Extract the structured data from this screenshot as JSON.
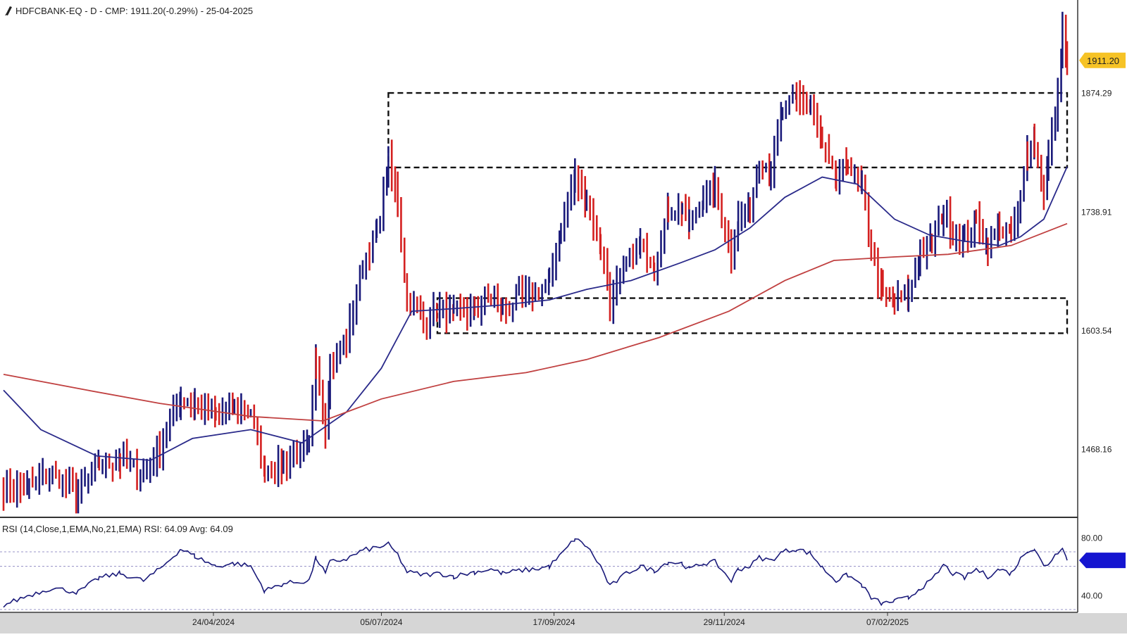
{
  "header": {
    "title": "HDFCBANK-EQ - D - CMP: 1911.20(-0.29%) - 25-04-2025",
    "icon": "pen-icon"
  },
  "price_pane": {
    "current_price_label": "1911.20",
    "y_tick_labels": [
      "1874.29",
      "1738.91",
      "1603.54",
      "1468.16"
    ],
    "colors": {
      "up": "#1a1a7a",
      "down": "#d42020",
      "ma_fast": "#2a2a8a",
      "ma_slow": "#c04040",
      "price_tag": "#f5b800"
    }
  },
  "rsi_pane": {
    "label": "RSI (14,Close,1,EMA,No,21,EMA) RSI: 64.09 Avg: 64.09",
    "y_tick_labels": [
      "80.00",
      "40.00"
    ],
    "current_tag_color": "#1515d0"
  },
  "x_axis": {
    "tick_labels": [
      "24/04/2024",
      "05/07/2024",
      "17/09/2024",
      "29/11/2024",
      "07/02/2025"
    ]
  },
  "chart_data": [
    {
      "type": "candlestick",
      "title": "HDFCBANK-EQ - D - CMP: 1911.20(-0.29%) - 25-04-2025",
      "x_start": "2024-01-25",
      "x_end": "2025-04-25",
      "ylim": [
        1390,
        1980
      ],
      "y_ticks": [
        1874.29,
        1738.91,
        1603.54,
        1468.16
      ],
      "current_price": 1911.2,
      "close_path": [
        [
          "2024-01-25",
          1420
        ],
        [
          "2024-02-05",
          1425
        ],
        [
          "2024-02-15",
          1440
        ],
        [
          "2024-02-26",
          1418
        ],
        [
          "2024-03-06",
          1450
        ],
        [
          "2024-03-15",
          1455
        ],
        [
          "2024-03-25",
          1440
        ],
        [
          "2024-04-01",
          1470
        ],
        [
          "2024-04-10",
          1525
        ],
        [
          "2024-04-16",
          1520
        ],
        [
          "2024-04-25",
          1505
        ],
        [
          "2024-05-03",
          1515
        ],
        [
          "2024-05-10",
          1510
        ],
        [
          "2024-05-16",
          1445
        ],
        [
          "2024-05-24",
          1450
        ],
        [
          "2024-06-04",
          1470
        ],
        [
          "2024-06-07",
          1570
        ],
        [
          "2024-06-11",
          1490
        ],
        [
          "2024-06-13",
          1560
        ],
        [
          "2024-06-20",
          1590
        ],
        [
          "2024-06-27",
          1680
        ],
        [
          "2024-07-03",
          1715
        ],
        [
          "2024-07-08",
          1795
        ],
        [
          "2024-07-12",
          1750
        ],
        [
          "2024-07-16",
          1640
        ],
        [
          "2024-07-23",
          1615
        ],
        [
          "2024-07-30",
          1625
        ],
        [
          "2024-08-05",
          1620
        ],
        [
          "2024-08-14",
          1630
        ],
        [
          "2024-08-21",
          1640
        ],
        [
          "2024-08-26",
          1625
        ],
        [
          "2024-09-02",
          1640
        ],
        [
          "2024-09-09",
          1645
        ],
        [
          "2024-09-15",
          1660
        ],
        [
          "2024-09-20",
          1720
        ],
        [
          "2024-09-26",
          1780
        ],
        [
          "2024-10-01",
          1750
        ],
        [
          "2024-10-07",
          1700
        ],
        [
          "2024-10-11",
          1635
        ],
        [
          "2024-10-18",
          1680
        ],
        [
          "2024-10-24",
          1700
        ],
        [
          "2024-10-30",
          1680
        ],
        [
          "2024-11-05",
          1740
        ],
        [
          "2024-11-11",
          1745
        ],
        [
          "2024-11-14",
          1720
        ],
        [
          "2024-11-20",
          1755
        ],
        [
          "2024-11-25",
          1765
        ],
        [
          "2024-12-02",
          1690
        ],
        [
          "2024-12-05",
          1730
        ],
        [
          "2024-12-10",
          1745
        ],
        [
          "2024-12-14",
          1800
        ],
        [
          "2024-12-19",
          1785
        ],
        [
          "2024-12-24",
          1850
        ],
        [
          "2024-12-30",
          1870
        ],
        [
          "2025-01-05",
          1860
        ],
        [
          "2025-01-10",
          1810
        ],
        [
          "2025-01-16",
          1775
        ],
        [
          "2025-01-21",
          1795
        ],
        [
          "2025-01-27",
          1760
        ],
        [
          "2025-01-31",
          1700
        ],
        [
          "2025-02-05",
          1640
        ],
        [
          "2025-02-10",
          1635
        ],
        [
          "2025-02-16",
          1645
        ],
        [
          "2025-02-21",
          1690
        ],
        [
          "2025-02-26",
          1705
        ],
        [
          "2025-03-03",
          1740
        ],
        [
          "2025-03-07",
          1715
        ],
        [
          "2025-03-12",
          1705
        ],
        [
          "2025-03-17",
          1730
        ],
        [
          "2025-03-22",
          1700
        ],
        [
          "2025-03-27",
          1725
        ],
        [
          "2025-04-01",
          1710
        ],
        [
          "2025-04-05",
          1750
        ],
        [
          "2025-04-08",
          1810
        ],
        [
          "2025-04-11",
          1820
        ],
        [
          "2025-04-15",
          1760
        ],
        [
          "2025-04-17",
          1800
        ],
        [
          "2025-04-21",
          1870
        ],
        [
          "2025-04-23",
          1945
        ],
        [
          "2025-04-25",
          1911.2
        ]
      ],
      "series": [
        {
          "name": "",
          "line": "moving-average-fast",
          "points": [
            [
              "2024-01-25",
              1535
            ],
            [
              "2024-02-10",
              1490
            ],
            [
              "2024-03-05",
              1460
            ],
            [
              "2024-03-28",
              1455
            ],
            [
              "2024-04-15",
              1480
            ],
            [
              "2024-05-10",
              1490
            ],
            [
              "2024-06-01",
              1475
            ],
            [
              "2024-06-20",
              1510
            ],
            [
              "2024-07-05",
              1560
            ],
            [
              "2024-07-18",
              1625
            ],
            [
              "2024-08-05",
              1628
            ],
            [
              "2024-08-25",
              1632
            ],
            [
              "2024-09-15",
              1638
            ],
            [
              "2024-10-01",
              1650
            ],
            [
              "2024-10-20",
              1660
            ],
            [
              "2024-11-10",
              1680
            ],
            [
              "2024-11-25",
              1695
            ],
            [
              "2024-12-10",
              1720
            ],
            [
              "2024-12-25",
              1755
            ],
            [
              "2025-01-10",
              1778
            ],
            [
              "2025-01-25",
              1770
            ],
            [
              "2025-02-10",
              1730
            ],
            [
              "2025-02-25",
              1712
            ],
            [
              "2025-03-12",
              1705
            ],
            [
              "2025-03-27",
              1700
            ],
            [
              "2025-04-05",
              1710
            ],
            [
              "2025-04-15",
              1730
            ],
            [
              "2025-04-25",
              1790
            ]
          ]
        },
        {
          "name": "",
          "line": "moving-average-slow",
          "points": [
            [
              "2024-01-25",
              1553
            ],
            [
              "2024-03-01",
              1535
            ],
            [
              "2024-04-01",
              1520
            ],
            [
              "2024-05-10",
              1505
            ],
            [
              "2024-06-10",
              1500
            ],
            [
              "2024-07-05",
              1525
            ],
            [
              "2024-08-05",
              1545
            ],
            [
              "2024-09-05",
              1555
            ],
            [
              "2024-10-01",
              1570
            ],
            [
              "2024-11-01",
              1595
            ],
            [
              "2024-12-01",
              1625
            ],
            [
              "2024-12-25",
              1660
            ],
            [
              "2025-01-15",
              1683
            ],
            [
              "2025-02-10",
              1687
            ],
            [
              "2025-03-05",
              1690
            ],
            [
              "2025-04-01",
              1700
            ],
            [
              "2025-04-25",
              1725
            ]
          ]
        }
      ],
      "annotations": [
        {
          "type": "zone",
          "x_from": "2024-07-08",
          "x_to": "2025-04-25",
          "y_from": 1789,
          "y_to": 1874
        },
        {
          "type": "zone",
          "x_from": "2024-07-29",
          "x_to": "2025-04-25",
          "y_from": 1600,
          "y_to": 1640
        }
      ]
    },
    {
      "type": "line",
      "title": "RSI (14,Close,1,EMA,No,21,EMA) RSI: 64.09 Avg: 64.09",
      "ylim": [
        30,
        90
      ],
      "y_ticks": [
        80,
        40
      ],
      "reference_lines": [
        70,
        60,
        30
      ],
      "series": [
        {
          "name": "RSI",
          "points": [
            [
              "2024-01-25",
              33
            ],
            [
              "2024-02-05",
              40
            ],
            [
              "2024-02-15",
              45
            ],
            [
              "2024-02-26",
              42
            ],
            [
              "2024-03-06",
              52
            ],
            [
              "2024-03-15",
              55
            ],
            [
              "2024-03-25",
              50
            ],
            [
              "2024-04-01",
              58
            ],
            [
              "2024-04-10",
              72
            ],
            [
              "2024-04-16",
              67
            ],
            [
              "2024-04-25",
              60
            ],
            [
              "2024-05-03",
              62
            ],
            [
              "2024-05-10",
              60
            ],
            [
              "2024-05-16",
              43
            ],
            [
              "2024-05-24",
              48
            ],
            [
              "2024-06-04",
              50
            ],
            [
              "2024-06-07",
              66
            ],
            [
              "2024-06-11",
              55
            ],
            [
              "2024-06-13",
              63
            ],
            [
              "2024-06-20",
              65
            ],
            [
              "2024-06-27",
              71
            ],
            [
              "2024-07-03",
              73
            ],
            [
              "2024-07-08",
              75
            ],
            [
              "2024-07-12",
              68
            ],
            [
              "2024-07-16",
              56
            ],
            [
              "2024-07-23",
              54
            ],
            [
              "2024-07-30",
              55
            ],
            [
              "2024-08-05",
              53
            ],
            [
              "2024-08-14",
              56
            ],
            [
              "2024-08-21",
              58
            ],
            [
              "2024-08-26",
              55
            ],
            [
              "2024-09-02",
              57
            ],
            [
              "2024-09-09",
              58
            ],
            [
              "2024-09-15",
              60
            ],
            [
              "2024-09-20",
              68
            ],
            [
              "2024-09-26",
              79
            ],
            [
              "2024-10-01",
              74
            ],
            [
              "2024-10-07",
              60
            ],
            [
              "2024-10-11",
              46
            ],
            [
              "2024-10-18",
              55
            ],
            [
              "2024-10-24",
              60
            ],
            [
              "2024-10-30",
              57
            ],
            [
              "2024-11-05",
              63
            ],
            [
              "2024-11-11",
              62
            ],
            [
              "2024-11-14",
              58
            ],
            [
              "2024-11-20",
              62
            ],
            [
              "2024-11-25",
              63
            ],
            [
              "2024-12-02",
              50
            ],
            [
              "2024-12-05",
              58
            ],
            [
              "2024-12-10",
              60
            ],
            [
              "2024-12-14",
              66
            ],
            [
              "2024-12-19",
              64
            ],
            [
              "2024-12-24",
              70
            ],
            [
              "2024-12-30",
              72
            ],
            [
              "2025-01-05",
              69
            ],
            [
              "2025-01-10",
              59
            ],
            [
              "2025-01-16",
              50
            ],
            [
              "2025-01-21",
              54
            ],
            [
              "2025-01-27",
              47
            ],
            [
              "2025-01-31",
              38
            ],
            [
              "2025-02-05",
              34
            ],
            [
              "2025-02-10",
              36
            ],
            [
              "2025-02-16",
              38
            ],
            [
              "2025-02-21",
              45
            ],
            [
              "2025-02-26",
              50
            ],
            [
              "2025-03-03",
              61
            ],
            [
              "2025-03-07",
              55
            ],
            [
              "2025-03-12",
              52
            ],
            [
              "2025-03-17",
              58
            ],
            [
              "2025-03-22",
              53
            ],
            [
              "2025-03-27",
              58
            ],
            [
              "2025-04-01",
              55
            ],
            [
              "2025-04-05",
              65
            ],
            [
              "2025-04-08",
              71
            ],
            [
              "2025-04-11",
              72
            ],
            [
              "2025-04-15",
              60
            ],
            [
              "2025-04-17",
              62
            ],
            [
              "2025-04-21",
              70
            ],
            [
              "2025-04-23",
              74
            ],
            [
              "2025-04-25",
              64.09
            ]
          ]
        }
      ]
    }
  ]
}
